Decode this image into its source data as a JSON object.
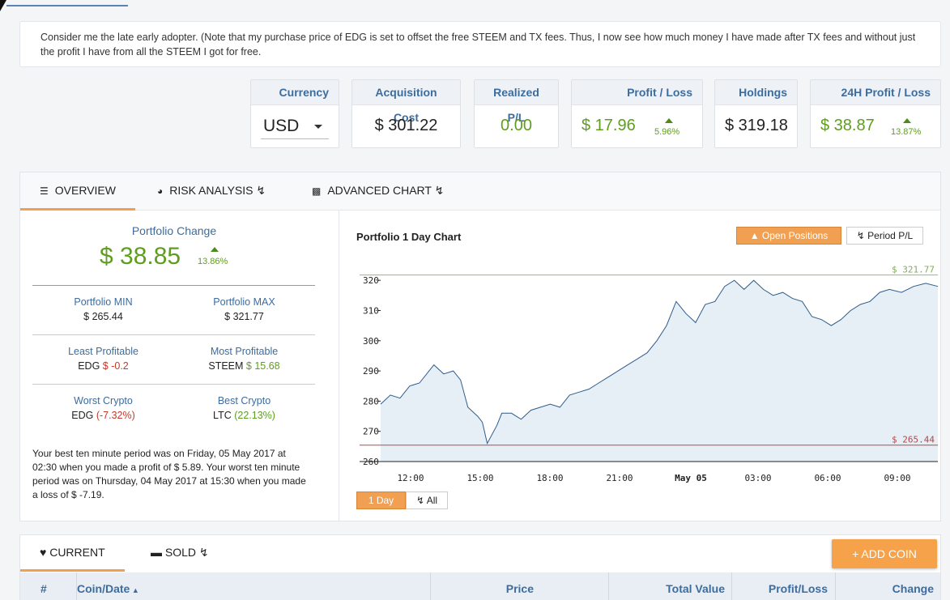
{
  "note": "Consider me the late early adopter. (Note that my purchase price of EDG is set to offset the free STEEM and TX fees. Thus, I now see how much money I have made after TX fees and without just the profit I have from all the STEEM I got for free.",
  "stats": {
    "currency": {
      "label": "Currency",
      "value": "USD"
    },
    "acquisition": {
      "label": "Acquisition Cost",
      "value": "$ 301.22"
    },
    "realized": {
      "label": "Realized P/L",
      "value": "0.00"
    },
    "profit": {
      "label": "Profit / Loss",
      "value": "$ 17.96",
      "pct": "5.96%"
    },
    "holdings": {
      "label": "Holdings",
      "value": "$ 319.18"
    },
    "profit24": {
      "label": "24H Profit / Loss",
      "value": "$ 38.87",
      "pct": "13.87%"
    }
  },
  "tabs": {
    "overview": "OVERVIEW",
    "risk": "RISK ANALYSIS",
    "advanced": "ADVANCED CHART"
  },
  "overview": {
    "change_label": "Portfolio Change",
    "change_value": "$ 38.85",
    "change_pct": "13.86%",
    "min_label": "Portfolio MIN",
    "min_value": "$ 265.44",
    "max_label": "Portfolio MAX",
    "max_value": "$ 321.77",
    "least_label": "Least Profitable",
    "least_coin": "EDG",
    "least_value": "$ -0.2",
    "most_label": "Most Profitable",
    "most_coin": "STEEM",
    "most_value": "$ 15.68",
    "worst_label": "Worst Crypto",
    "worst_coin": "EDG",
    "worst_value": "(-7.32%)",
    "best_label": "Best Crypto",
    "best_coin": "LTC",
    "best_value": "(22.13%)",
    "summary": "Your best ten minute period was on Friday, 05 May 2017 at 02:30 when you made a profit of $ 5.89. Your worst ten minute period was on Thursday, 04 May 2017 at 15:30 when you made a loss of $ -7.19."
  },
  "chart_controls": {
    "open_positions": "Open Positions",
    "period_pl": "Period P/L",
    "day": "1 Day",
    "all": "All"
  },
  "chart_data": {
    "type": "area",
    "title": "Portfolio 1 Day Chart",
    "x_ticks": [
      "12:00",
      "15:00",
      "18:00",
      "21:00",
      "May 05",
      "03:00",
      "06:00",
      "09:00"
    ],
    "y_ticks": [
      260,
      270,
      280,
      290,
      300,
      310,
      320
    ],
    "ylim": [
      260,
      323
    ],
    "max_line": {
      "value": 321.77,
      "label": "$ 321.77"
    },
    "min_line": {
      "value": 265.44,
      "label": "$ 265.44"
    },
    "series": [
      {
        "x_hours": [
          0,
          0.4,
          0.8,
          1.2,
          1.6,
          2.0,
          2.2,
          2.6,
          3.0,
          3.3,
          3.6,
          4.0,
          4.2,
          4.4,
          4.8,
          5.0,
          5.4,
          5.8,
          6.2,
          6.6,
          7.0,
          7.4,
          7.8,
          8.2,
          8.6,
          9.0,
          9.4,
          9.8,
          10.2,
          10.6,
          11.0,
          11.4,
          11.8,
          12.2,
          12.6,
          13.0,
          13.4,
          13.8,
          14.2,
          14.6,
          15.0,
          15.4,
          15.8,
          16.2,
          16.6,
          17.0,
          17.4,
          17.8,
          18.2,
          18.6,
          19.0,
          19.4,
          19.8,
          20.2,
          20.6,
          21.0,
          21.5,
          22.0,
          22.5,
          23.0
        ],
        "values": [
          279,
          282,
          281,
          285,
          286,
          290,
          292,
          289,
          290,
          287,
          278,
          275,
          273,
          266,
          272,
          276,
          276,
          274,
          277,
          278,
          279,
          278,
          282,
          283,
          284,
          286,
          288,
          290,
          292,
          294,
          296,
          300,
          305,
          313,
          309,
          306,
          312,
          313,
          318,
          320,
          317,
          320,
          317,
          315,
          316,
          314,
          313,
          308,
          307,
          305,
          307,
          310,
          312,
          313,
          316,
          317,
          316,
          318,
          319,
          318
        ]
      }
    ]
  },
  "bottom": {
    "current": "CURRENT",
    "sold": "SOLD",
    "add_coin": "ADD COIN",
    "columns": [
      "#",
      "Coin/Date",
      "Price",
      "Total Value",
      "Profit/Loss",
      "Change"
    ]
  },
  "colors": {
    "accent": "#f0a050",
    "blue": "#3d6c9e",
    "green": "#5f9d1f",
    "red": "#c0392b"
  }
}
